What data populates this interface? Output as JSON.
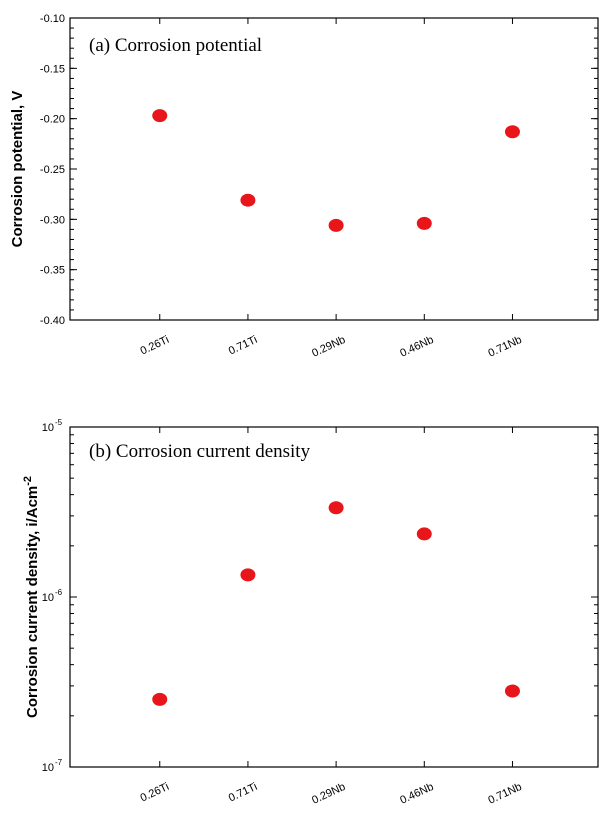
{
  "point_color": "#e8161b",
  "chart_data": [
    {
      "type": "scatter",
      "title": "(a)  Corrosion potential",
      "ylabel": "Corrosion potential, V",
      "xlabel": "",
      "categories": [
        "0.26Ti",
        "0.71Ti",
        "0.29Nb",
        "0.46Nb",
        "0.71Nb"
      ],
      "values": [
        -0.197,
        -0.281,
        -0.306,
        -0.304,
        -0.213
      ],
      "ylim": [
        -0.4,
        -0.1
      ],
      "yscale": "linear",
      "yticks": [
        -0.1,
        -0.15,
        -0.2,
        -0.25,
        -0.3,
        -0.35,
        -0.4
      ],
      "ytick_labels": [
        "-0.10",
        "-0.15",
        "-0.20",
        "-0.25",
        "-0.30",
        "-0.35",
        "-0.40"
      ],
      "grid": false,
      "legend": "none"
    },
    {
      "type": "scatter",
      "title": "(b)  Corrosion current density",
      "ylabel": "Corrosion current density, i/Acm",
      "ylabel_superscript": "-2",
      "xlabel": "",
      "categories": [
        "0.26Ti",
        "0.71Ti",
        "0.29Nb",
        "0.46Nb",
        "0.71Nb"
      ],
      "values": [
        2.5e-07,
        1.35e-06,
        3.35e-06,
        2.35e-06,
        2.8e-07
      ],
      "ylim": [
        1e-07,
        1e-05
      ],
      "yscale": "log",
      "yticks": [
        1e-07,
        1e-06,
        1e-05
      ],
      "ytick_labels": [
        {
          "base": "10",
          "exp": "-7"
        },
        {
          "base": "10",
          "exp": "-6"
        },
        {
          "base": "10",
          "exp": "-5"
        }
      ],
      "grid": false,
      "legend": "none"
    }
  ]
}
